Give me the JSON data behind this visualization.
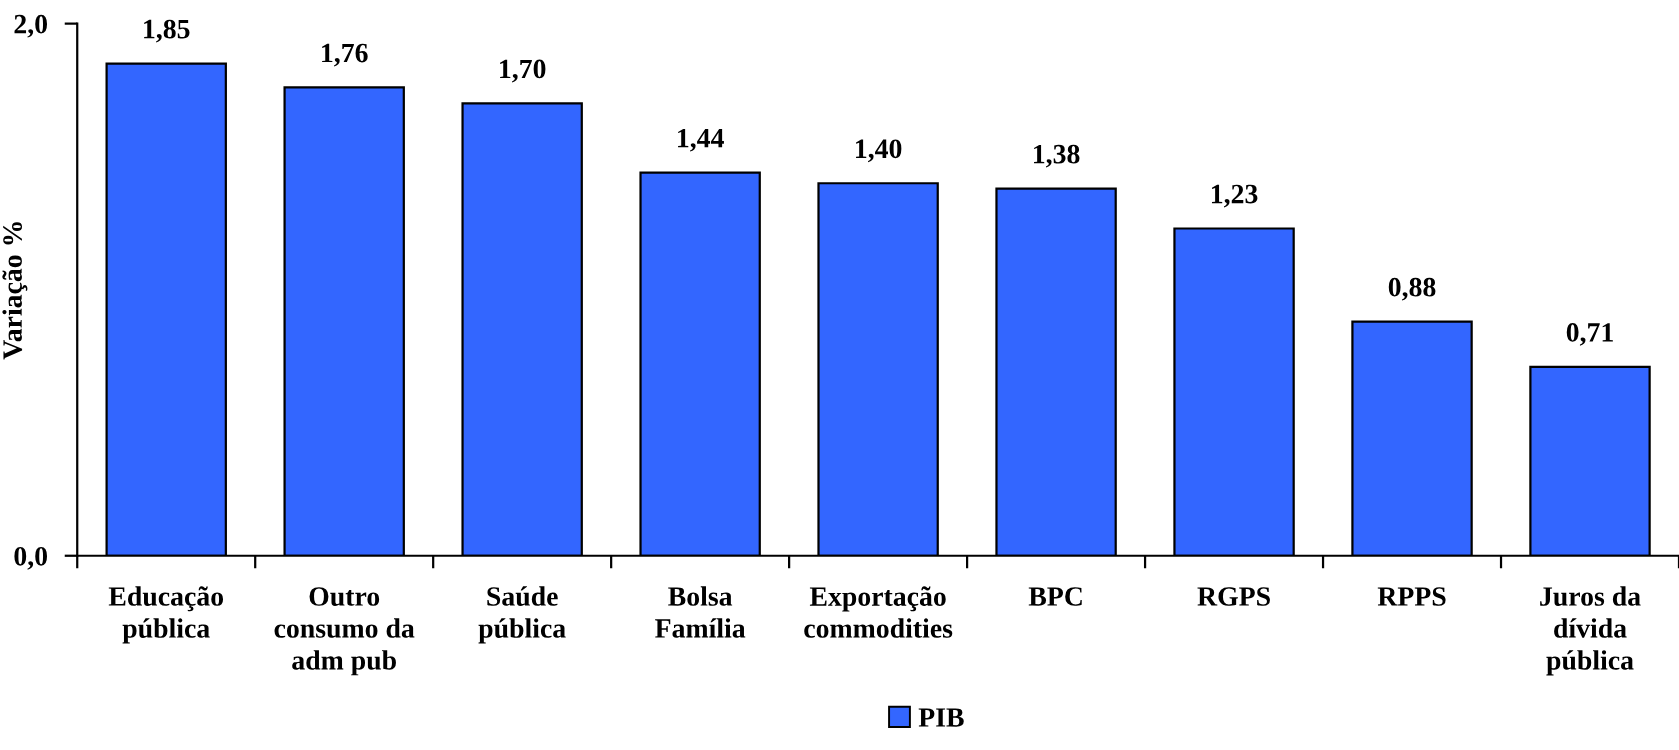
{
  "chart_data": {
    "type": "bar",
    "categories": [
      "Educação\npública",
      "Outro\nconsumo da\nadm pub",
      "Saúde\npública",
      "Bolsa\nFamília",
      "Exportação\ncommodities",
      "BPC",
      "RGPS",
      "RPPS",
      "Juros da\ndívida\npública"
    ],
    "series": [
      {
        "name": "PIB",
        "color": "#3366ff",
        "values": [
          1.85,
          1.76,
          1.7,
          1.44,
          1.4,
          1.38,
          1.23,
          0.88,
          0.71
        ],
        "value_labels": [
          "1,85",
          "1,76",
          "1,70",
          "1,44",
          "1,40",
          "1,38",
          "1,23",
          "0,88",
          "0,71"
        ]
      }
    ],
    "ylabel": "Variação %",
    "ylim": [
      0,
      2
    ],
    "yticks": [
      {
        "value": 0,
        "label": "0,0"
      },
      {
        "value": 2,
        "label": "2,0"
      }
    ],
    "legend": "bottom"
  }
}
